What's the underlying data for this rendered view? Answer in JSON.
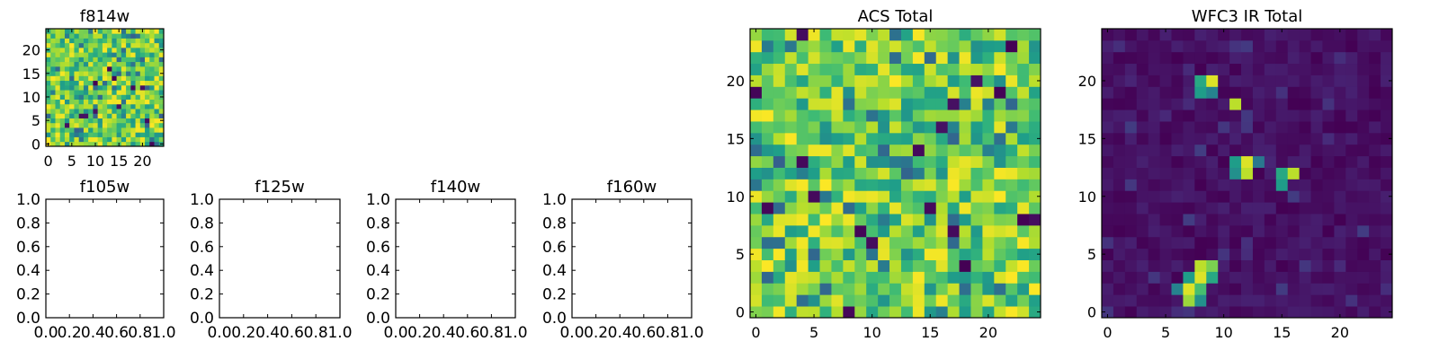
{
  "chart_data": [
    {
      "type": "heatmap",
      "title": "f814w",
      "grid_size": 25,
      "xlim": [
        -0.5,
        24.5
      ],
      "ylim": [
        -0.5,
        24.5
      ],
      "xticks": [
        0,
        5,
        10,
        15,
        20
      ],
      "yticks": [
        0,
        5,
        10,
        15,
        20
      ],
      "colormap": "viridis",
      "content": "noisy uniform background, mostly green-yellow",
      "sources": []
    },
    {
      "type": "empty",
      "title": "f105w",
      "xlim": [
        0,
        1
      ],
      "ylim": [
        0,
        1
      ],
      "xticks": [
        "0.0",
        "0.2",
        "0.4",
        "0.6",
        "0.8",
        "1.0"
      ],
      "yticks": [
        "0.0",
        "0.2",
        "0.4",
        "0.6",
        "0.8",
        "1.0"
      ]
    },
    {
      "type": "empty",
      "title": "f125w",
      "xlim": [
        0,
        1
      ],
      "ylim": [
        0,
        1
      ],
      "xticks": [
        "0.0",
        "0.2",
        "0.4",
        "0.6",
        "0.8",
        "1.0"
      ],
      "yticks": [
        "0.0",
        "0.2",
        "0.4",
        "0.6",
        "0.8",
        "1.0"
      ]
    },
    {
      "type": "empty",
      "title": "f140w",
      "xlim": [
        0,
        1
      ],
      "ylim": [
        0,
        1
      ],
      "xticks": [
        "0.0",
        "0.2",
        "0.4",
        "0.6",
        "0.8",
        "1.0"
      ],
      "yticks": [
        "0.0",
        "0.2",
        "0.4",
        "0.6",
        "0.8",
        "1.0"
      ]
    },
    {
      "type": "empty",
      "title": "f160w",
      "xlim": [
        0,
        1
      ],
      "ylim": [
        0,
        1
      ],
      "xticks": [
        "0.0",
        "0.2",
        "0.4",
        "0.6",
        "0.8",
        "1.0"
      ],
      "yticks": [
        "0.0",
        "0.2",
        "0.4",
        "0.6",
        "0.8",
        "1.0"
      ]
    },
    {
      "type": "heatmap",
      "title": "ACS Total",
      "grid_size": 25,
      "xlim": [
        -0.5,
        24.5
      ],
      "ylim": [
        -0.5,
        24.5
      ],
      "xticks": [
        0,
        5,
        10,
        15,
        20
      ],
      "yticks": [
        0,
        5,
        10,
        15,
        20
      ],
      "colormap": "viridis",
      "content": "noisy uniform background, mostly green-yellow",
      "sources": []
    },
    {
      "type": "heatmap",
      "title": "WFC3 IR Total",
      "grid_size": 25,
      "xlim": [
        -0.5,
        24.5
      ],
      "ylim": [
        -0.5,
        24.5
      ],
      "xticks": [
        0,
        5,
        10,
        15,
        20
      ],
      "yticks": [
        0,
        5,
        10,
        15,
        20
      ],
      "colormap": "viridis",
      "content": "dark purple background with bright compact sources",
      "sources": [
        {
          "col": 8,
          "row": 20,
          "value": 0.6
        },
        {
          "col": 9,
          "row": 20,
          "value": 0.95
        },
        {
          "col": 8,
          "row": 19,
          "value": 0.55
        },
        {
          "col": 9,
          "row": 19,
          "value": 0.45
        },
        {
          "col": 11,
          "row": 18,
          "value": 0.9
        },
        {
          "col": 11,
          "row": 13,
          "value": 0.55
        },
        {
          "col": 12,
          "row": 13,
          "value": 0.95
        },
        {
          "col": 11,
          "row": 12,
          "value": 0.5
        },
        {
          "col": 12,
          "row": 12,
          "value": 0.9
        },
        {
          "col": 13,
          "row": 13,
          "value": 0.4
        },
        {
          "col": 15,
          "row": 12,
          "value": 0.6
        },
        {
          "col": 16,
          "row": 12,
          "value": 0.9
        },
        {
          "col": 15,
          "row": 11,
          "value": 0.55
        },
        {
          "col": 8,
          "row": 4,
          "value": 0.9
        },
        {
          "col": 9,
          "row": 4,
          "value": 0.8
        },
        {
          "col": 7,
          "row": 3,
          "value": 0.55
        },
        {
          "col": 8,
          "row": 3,
          "value": 0.95
        },
        {
          "col": 9,
          "row": 3,
          "value": 0.6
        },
        {
          "col": 7,
          "row": 2,
          "value": 0.95
        },
        {
          "col": 8,
          "row": 2,
          "value": 0.7
        },
        {
          "col": 6,
          "row": 2,
          "value": 0.45
        },
        {
          "col": 7,
          "row": 1,
          "value": 0.85
        },
        {
          "col": 8,
          "row": 1,
          "value": 0.5
        }
      ]
    }
  ]
}
